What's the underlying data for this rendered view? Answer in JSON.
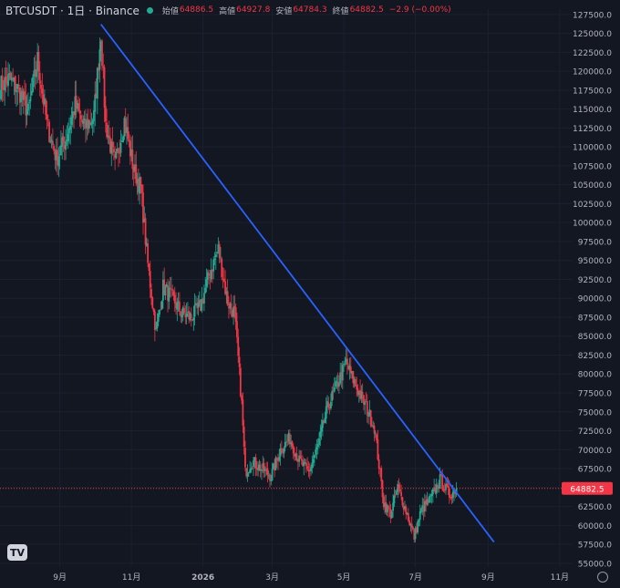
{
  "legend": {
    "symbol": "BTCUSDT · 1日 · Binance",
    "open_label": "始値",
    "open": "64886.5",
    "high_label": "高値",
    "high": "64927.8",
    "low_label": "安値",
    "low": "64784.3",
    "close_label": "終値",
    "close": "64882.5",
    "change": "−2.9 (−0.00%)"
  },
  "price_tag": "64882.5",
  "colors": {
    "background": "#131722",
    "up": "#22ab94",
    "down": "#f23645",
    "trendline": "#2962ff",
    "axis_text": "#b2b5be"
  },
  "chart_data": {
    "type": "candlestick",
    "y_ticks": [
      "127500.0",
      "125000.0",
      "122500.0",
      "120000.0",
      "117500.0",
      "115000.0",
      "112500.0",
      "110000.0",
      "107500.0",
      "105000.0",
      "102500.0",
      "100000.0",
      "97500.0",
      "95000.0",
      "92500.0",
      "90000.0",
      "87500.0",
      "85000.0",
      "82500.0",
      "80000.0",
      "77500.0",
      "75000.0",
      "72500.0",
      "70000.0",
      "67500.0",
      "65000.0",
      "62500.0",
      "60000.0",
      "57500.0",
      "55000.0"
    ],
    "x_ticks": [
      "9月",
      "11月",
      "2026",
      "3月",
      "5月",
      "7月",
      "9月",
      "11月"
    ],
    "ylim": [
      54500,
      128200
    ],
    "xlim": [
      "2025-07-12",
      "2026-11-12"
    ],
    "last_price": 64882.5,
    "trendline": [
      [
        "2025-10-06",
        126200
      ],
      [
        "2026-09-06",
        57800
      ]
    ],
    "price_path": [
      [
        "2025-07-12",
        118000
      ],
      [
        "2025-07-20",
        119000
      ],
      [
        "2025-07-28",
        117500
      ],
      [
        "2025-08-05",
        114500
      ],
      [
        "2025-08-13",
        121500
      ],
      [
        "2025-08-21",
        113000
      ],
      [
        "2025-08-29",
        108500
      ],
      [
        "2025-09-06",
        111000
      ],
      [
        "2025-09-14",
        115500
      ],
      [
        "2025-09-22",
        112500
      ],
      [
        "2025-09-30",
        114000
      ],
      [
        "2025-10-06",
        125000
      ],
      [
        "2025-10-10",
        113000
      ],
      [
        "2025-10-18",
        107500
      ],
      [
        "2025-10-26",
        113500
      ],
      [
        "2025-11-03",
        107000
      ],
      [
        "2025-11-09",
        104500
      ],
      [
        "2025-11-15",
        94500
      ],
      [
        "2025-11-22",
        85500
      ],
      [
        "2025-11-28",
        91500
      ],
      [
        "2025-12-06",
        90000
      ],
      [
        "2025-12-14",
        88000
      ],
      [
        "2025-12-22",
        87500
      ],
      [
        "2025-12-30",
        89000
      ],
      [
        "2026-01-06",
        93000
      ],
      [
        "2026-01-14",
        96500
      ],
      [
        "2026-01-22",
        89500
      ],
      [
        "2026-01-28",
        88000
      ],
      [
        "2026-02-03",
        76000
      ],
      [
        "2026-02-06",
        67000
      ],
      [
        "2026-02-12",
        68500
      ],
      [
        "2026-02-20",
        67500
      ],
      [
        "2026-02-28",
        66500
      ],
      [
        "2026-03-08",
        70000
      ],
      [
        "2026-03-16",
        71500
      ],
      [
        "2026-03-24",
        68500
      ],
      [
        "2026-04-01",
        67000
      ],
      [
        "2026-04-09",
        70500
      ],
      [
        "2026-04-17",
        75500
      ],
      [
        "2026-04-25",
        78500
      ],
      [
        "2026-05-03",
        81500
      ],
      [
        "2026-05-11",
        78500
      ],
      [
        "2026-05-19",
        76000
      ],
      [
        "2026-05-27",
        73000
      ],
      [
        "2026-06-04",
        63000
      ],
      [
        "2026-06-10",
        61500
      ],
      [
        "2026-06-16",
        65000
      ],
      [
        "2026-06-24",
        61500
      ],
      [
        "2026-06-30",
        58500
      ],
      [
        "2026-07-06",
        62000
      ],
      [
        "2026-07-14",
        63500
      ],
      [
        "2026-07-22",
        66000
      ],
      [
        "2026-07-30",
        64000
      ],
      [
        "2026-08-05",
        64882.5
      ]
    ]
  }
}
